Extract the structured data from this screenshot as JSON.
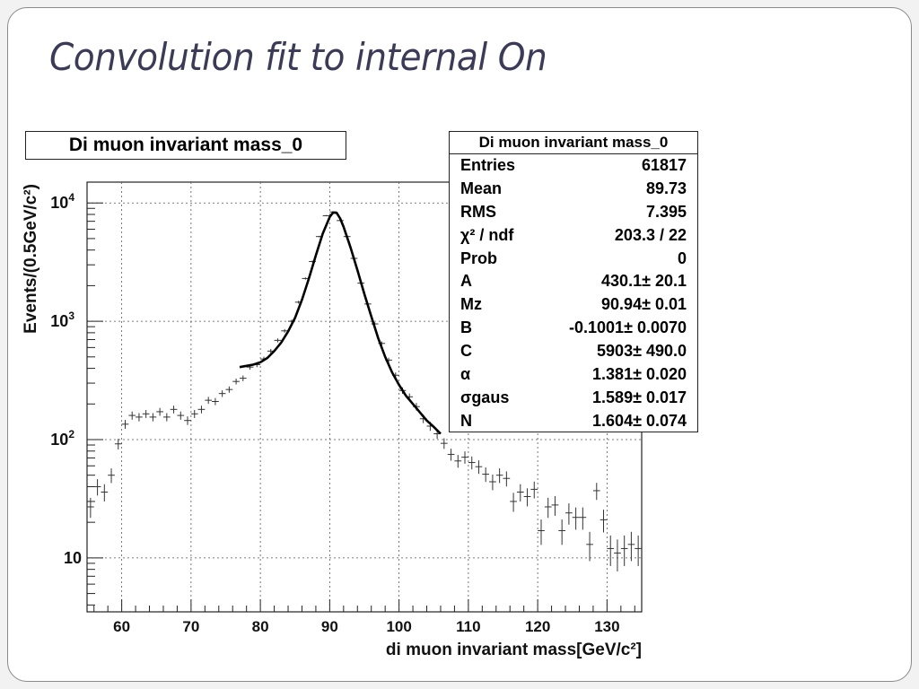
{
  "slide": {
    "title": "Convolution fit to internal On"
  },
  "chart_data": {
    "type": "scatter",
    "title": "Di muon invariant mass_0",
    "xlabel": "di muon invariant mass[GeV/c²]",
    "ylabel": "Events/(0.5GeV/c²)",
    "xlim": [
      55,
      135
    ],
    "ylim": [
      3.5,
      15000
    ],
    "yscale": "log",
    "grid": true,
    "x_ticks": [
      "60",
      "70",
      "80",
      "90",
      "100",
      "110",
      "120",
      "130"
    ],
    "y_ticks": [
      {
        "base": "10",
        "exp": "",
        "value": 10
      },
      {
        "base": "10",
        "exp": "2",
        "value": 100
      },
      {
        "base": "10",
        "exp": "3",
        "value": 1000
      },
      {
        "base": "10",
        "exp": "4",
        "value": 10000
      }
    ],
    "series": [
      {
        "kind": "data_points_with_errors",
        "x": [
          55.5,
          56.5,
          57.5,
          58.5,
          59.5,
          60.5,
          61.5,
          62.5,
          63.5,
          64.5,
          65.5,
          66.5,
          67.5,
          68.5,
          69.5,
          70.5,
          71.5,
          72.5,
          73.5,
          74.5,
          75.5,
          76.5,
          77.5,
          78.5,
          79.5,
          80.5,
          81.5,
          82.5,
          83.5,
          84.5,
          85.5,
          86.5,
          87.5,
          88.5,
          89.5,
          90.5,
          91.5,
          92.5,
          93.5,
          94.5,
          95.5,
          96.5,
          97.5,
          98.5,
          99.5,
          100.5,
          101.5,
          102.5,
          103.5,
          104.5,
          105.5,
          106.5,
          107.5,
          108.5,
          109.5,
          110.5,
          111.5,
          112.5,
          113.5,
          114.5,
          115.5,
          116.5,
          117.5,
          118.5,
          119.5,
          120.5,
          121.5,
          122.5,
          123.5,
          124.5,
          125.5,
          126.5,
          127.5,
          128.5,
          129.5,
          130.5,
          131.5,
          132.5,
          133.5,
          134.5
        ],
        "y": [
          27,
          40,
          36,
          50,
          92,
          135,
          160,
          155,
          165,
          155,
          172,
          155,
          180,
          160,
          145,
          165,
          180,
          215,
          210,
          245,
          265,
          310,
          330,
          410,
          430,
          480,
          560,
          690,
          830,
          1000,
          1450,
          2300,
          3200,
          5200,
          7800,
          8400,
          7100,
          5200,
          3400,
          2100,
          1400,
          950,
          650,
          470,
          350,
          260,
          230,
          190,
          150,
          130,
          112,
          93,
          75,
          66,
          71,
          64,
          59,
          51,
          44,
          50,
          47,
          30,
          36,
          33,
          38,
          17,
          27,
          28,
          17,
          24,
          22,
          22,
          13,
          37,
          21,
          12,
          11,
          12,
          13,
          12
        ]
      },
      {
        "kind": "fit_curve",
        "x": [
          77,
          78,
          79,
          80,
          81,
          82,
          83,
          84,
          85,
          86,
          87,
          88,
          89,
          90,
          90.5,
          91,
          91.5,
          92,
          93,
          94,
          95,
          96,
          97,
          98,
          99,
          100,
          101,
          102,
          103,
          104,
          105,
          106
        ],
        "y": [
          410,
          420,
          430,
          450,
          490,
          560,
          660,
          820,
          1070,
          1520,
          2300,
          3600,
          5500,
          7600,
          8300,
          8250,
          7400,
          6300,
          4200,
          2700,
          1700,
          1100,
          720,
          500,
          370,
          290,
          235,
          200,
          170,
          145,
          128,
          112
        ]
      }
    ],
    "stats_box": {
      "title": "Di muon invariant mass_0",
      "rows": [
        {
          "label": "Entries",
          "value": "61817"
        },
        {
          "label": "Mean",
          "value": "89.73"
        },
        {
          "label": "RMS",
          "value": "7.395"
        },
        {
          "label": "χ² / ndf",
          "value": "203.3 / 22"
        },
        {
          "label": "Prob",
          "value": "0"
        },
        {
          "label": "A",
          "value": "430.1± 20.1"
        },
        {
          "label": "Mz",
          "value": "90.94± 0.01"
        },
        {
          "label": "B",
          "value": "-0.1001± 0.0070"
        },
        {
          "label": "C",
          "value": "5903± 490.0"
        },
        {
          "label": "α",
          "value": "1.381± 0.020"
        },
        {
          "label": "σgaus",
          "value": "1.589± 0.017"
        },
        {
          "label": "N",
          "value": "1.604± 0.074"
        }
      ]
    }
  }
}
